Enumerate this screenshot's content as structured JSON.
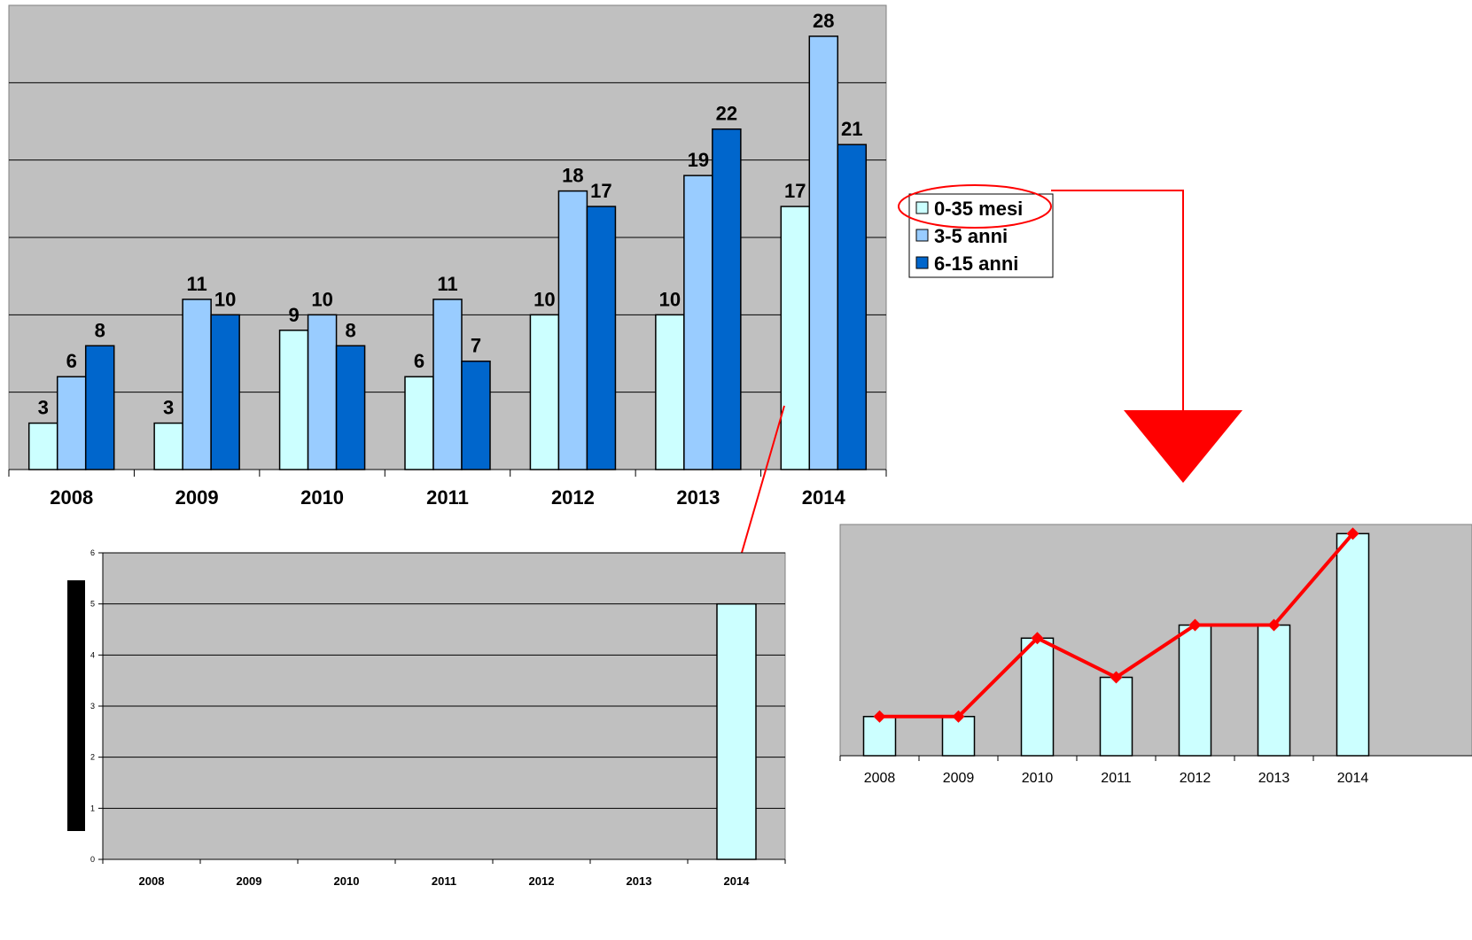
{
  "colors": {
    "plot_bg": "#c0c0c0",
    "series_1": "#ccffff",
    "series_2": "#99ccff",
    "series_3": "#0066cc",
    "accent_red": "#ff0000",
    "grid": "#000000"
  },
  "chart_data": [
    {
      "type": "bar",
      "categories": [
        "2008",
        "2009",
        "2010",
        "2011",
        "2012",
        "2013",
        "2014"
      ],
      "series": [
        {
          "name": "0-35 mesi",
          "values": [
            3,
            3,
            9,
            6,
            10,
            10,
            17
          ]
        },
        {
          "name": "3-5 anni",
          "values": [
            6,
            11,
            10,
            11,
            18,
            19,
            28
          ]
        },
        {
          "name": "6-15 anni",
          "values": [
            8,
            10,
            8,
            7,
            17,
            22,
            21
          ]
        }
      ],
      "ylim": [
        0,
        30
      ],
      "grid": true,
      "legend": "right",
      "data_labels": true
    },
    {
      "type": "bar",
      "categories": [
        "2008",
        "2009",
        "2010",
        "2011",
        "2012",
        "2013",
        "2014"
      ],
      "values": [
        0,
        0,
        0,
        0,
        0,
        0,
        5
      ],
      "yticks": [
        "0",
        "1",
        "2",
        "3",
        "4",
        "5",
        "6"
      ],
      "ylim": [
        0,
        6
      ],
      "grid": true
    },
    {
      "type": "bar",
      "categories": [
        "2008",
        "2009",
        "2010",
        "2011",
        "2012",
        "2013",
        "2014"
      ],
      "values": [
        3,
        3,
        9,
        6,
        10,
        10,
        17
      ],
      "line_overlay": [
        3,
        3,
        9,
        6,
        10,
        10,
        17
      ],
      "ylim": [
        0,
        17.7
      ],
      "grid": false
    }
  ]
}
